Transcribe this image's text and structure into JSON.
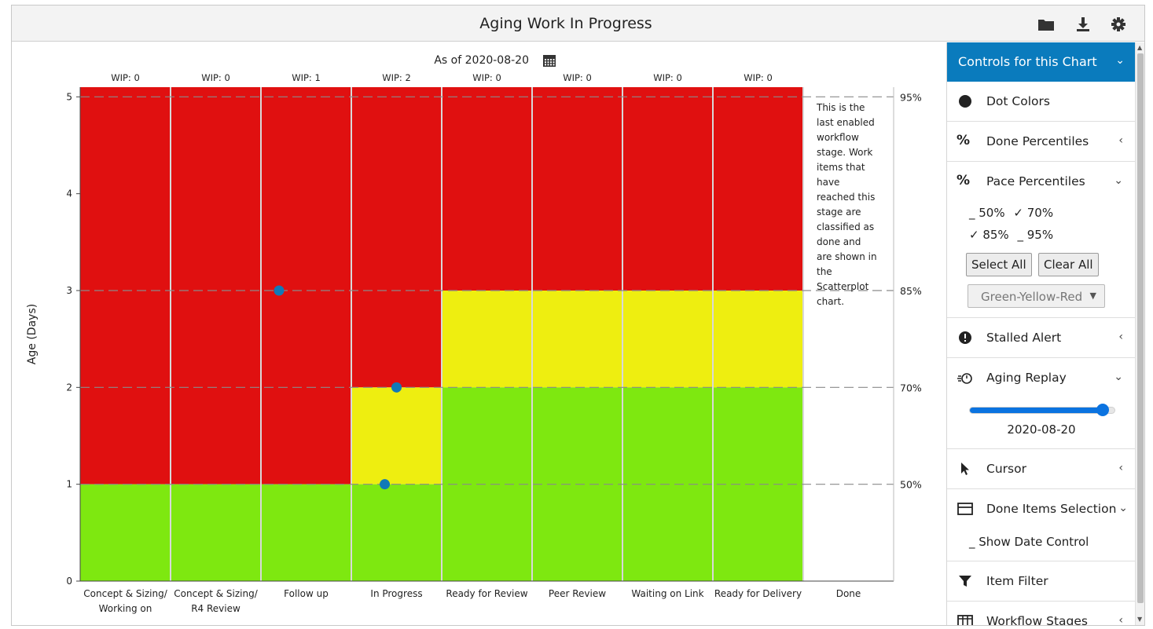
{
  "window": {
    "title": "Aging Work In Progress"
  },
  "toolbar": {
    "folder_icon": "folder-icon",
    "download_icon": "download-icon",
    "settings_icon": "gear-icon"
  },
  "chart_data": {
    "type": "scatter",
    "title": "",
    "as_of_label": "As of 2020-08-20",
    "ylabel": "Age (Days)",
    "xlabel": "",
    "ylim": [
      0,
      5.1
    ],
    "y_ticks": [
      "0",
      "1",
      "2",
      "3",
      "4",
      "5"
    ],
    "categories": [
      "Concept & Sizing/ Working on",
      "Concept & Sizing/ R4 Review",
      "Follow up",
      "In Progress",
      "Ready for Review",
      "Peer Review",
      "Waiting on Link",
      "Ready for Delivery",
      "Done"
    ],
    "category_lines": [
      [
        "Concept & Sizing/",
        "Working on"
      ],
      [
        "Concept & Sizing/",
        "R4 Review"
      ],
      [
        "Follow up"
      ],
      [
        "In Progress"
      ],
      [
        "Ready for Review"
      ],
      [
        "Peer Review"
      ],
      [
        "Waiting on Link"
      ],
      [
        "Ready for Delivery"
      ],
      [
        "Done"
      ]
    ],
    "wip_labels": [
      "WIP: 0",
      "WIP: 0",
      "WIP: 1",
      "WIP: 2",
      "WIP: 0",
      "WIP: 0",
      "WIP: 0",
      "WIP: 0"
    ],
    "color_bands": [
      {
        "green_top": 1,
        "yellow_top": 1
      },
      {
        "green_top": 1,
        "yellow_top": 1
      },
      {
        "green_top": 1,
        "yellow_top": 1
      },
      {
        "green_top": 1,
        "yellow_top": 2
      },
      {
        "green_top": 2,
        "yellow_top": 3
      },
      {
        "green_top": 2,
        "yellow_top": 3
      },
      {
        "green_top": 2,
        "yellow_top": 3
      },
      {
        "green_top": 2,
        "yellow_top": 3
      }
    ],
    "percentile_lines": [
      {
        "label": "50%",
        "y": 1
      },
      {
        "label": "70%",
        "y": 2
      },
      {
        "label": "85%",
        "y": 3
      },
      {
        "label": "95%",
        "y": 5
      }
    ],
    "points": [
      {
        "category_index": 2,
        "offset": 0.2,
        "y": 3
      },
      {
        "category_index": 3,
        "offset": 0.5,
        "y": 2
      },
      {
        "category_index": 3,
        "offset": 0.37,
        "y": 1
      }
    ],
    "done_note": [
      "This is the",
      "last enabled",
      "workflow",
      "stage. Work",
      "items that",
      "have",
      "reached this",
      "stage are",
      "classified as",
      "done and",
      "are shown in",
      "the",
      "Scatterplot",
      "chart."
    ],
    "colors": {
      "red": "#e01010",
      "yellow": "#eeee10",
      "green": "#7ee810",
      "dot": "#1179b8"
    }
  },
  "panel": {
    "header": "Controls for this Chart",
    "dot_colors": "Dot Colors",
    "done_percentiles": "Done Percentiles",
    "pace_percentiles": "Pace Percentiles",
    "pace_opts": {
      "p50": "_ 50%",
      "p70": "✓ 70%",
      "p85": "✓ 85%",
      "p95": "_ 95%"
    },
    "select_all": "Select All",
    "clear_all": "Clear All",
    "color_scheme": "Green-Yellow-Red",
    "stalled_alert": "Stalled Alert",
    "aging_replay": "Aging Replay",
    "replay_date": "2020-08-20",
    "replay_level": 0.92,
    "cursor": "Cursor",
    "done_items_selection": "Done Items Selection",
    "show_date_control": "_ Show Date Control",
    "item_filter": "Item Filter",
    "workflow_stages": "Workflow Stages"
  }
}
